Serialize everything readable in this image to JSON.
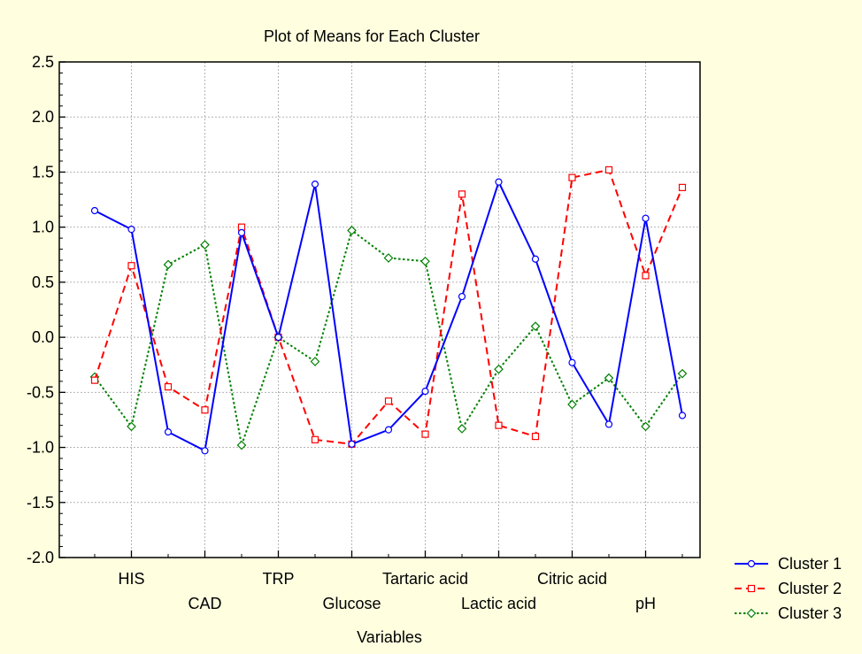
{
  "chart_data": {
    "type": "line",
    "title": "Plot of Means for Each Cluster",
    "xlabel": "Variables",
    "ylabel": "",
    "ylim": [
      -2.0,
      2.5
    ],
    "yticks": [
      "2.5",
      "2.0",
      "1.5",
      "1.0",
      "0.5",
      "0.0",
      "-0.5",
      "-1.0",
      "-1.5",
      "-2.0"
    ],
    "categories": [
      "",
      "HIS",
      "",
      "CAD",
      "",
      "TRP",
      "",
      "Glucose",
      "",
      "Tartaric acid",
      "",
      "Lactic acid",
      "",
      "Citric acid",
      "",
      "pH",
      ""
    ],
    "label_rows": [
      {
        "row": "top",
        "labels": [
          "HIS",
          "TRP",
          "Tartaric acid",
          "Citric acid"
        ]
      },
      {
        "row": "bottom",
        "labels": [
          "CAD",
          "Glucose",
          "Lactic acid",
          "pH"
        ]
      }
    ],
    "grid": true,
    "legend_position": "bottom-right",
    "series": [
      {
        "name": "Cluster  1",
        "color": "#0000ff",
        "line_style": "solid",
        "marker": "circle",
        "values": [
          1.15,
          0.98,
          -0.86,
          -1.03,
          0.95,
          0.0,
          1.39,
          -0.97,
          -0.84,
          -0.49,
          0.37,
          1.41,
          0.71,
          -0.23,
          -0.79,
          1.08,
          -0.71
        ]
      },
      {
        "name": "Cluster  2",
        "color": "#ff0000",
        "line_style": "dashed",
        "marker": "square",
        "values": [
          -0.39,
          0.65,
          -0.45,
          -0.66,
          1.0,
          0.0,
          -0.93,
          -0.97,
          -0.58,
          -0.88,
          1.3,
          -0.8,
          -0.9,
          1.45,
          1.52,
          0.56,
          1.36
        ]
      },
      {
        "name": "Cluster  3",
        "color": "#008000",
        "line_style": "dotted",
        "marker": "diamond",
        "values": [
          -0.36,
          -0.81,
          0.66,
          0.84,
          -0.98,
          0.0,
          -0.22,
          0.97,
          0.72,
          0.69,
          -0.83,
          -0.29,
          0.1,
          -0.61,
          -0.37,
          -0.81,
          -0.33
        ]
      }
    ]
  }
}
